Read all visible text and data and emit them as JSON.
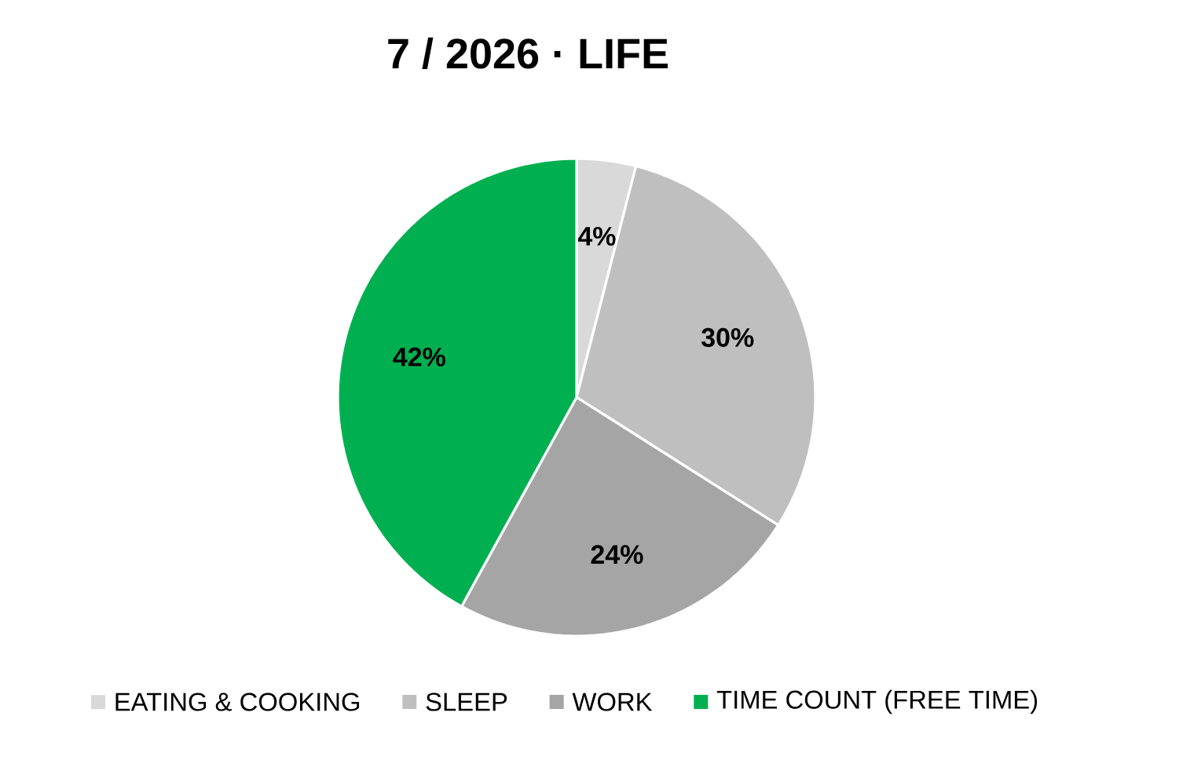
{
  "chart_data": {
    "type": "pie",
    "title": "7  / 2026 · LIFE",
    "categories": [
      "EATING & COOKING",
      "SLEEP",
      "WORK",
      "TIME COUNT (FREE TIME)"
    ],
    "values": [
      4,
      30,
      24,
      42
    ],
    "value_labels": [
      "4%",
      "30%",
      "24%",
      "42%"
    ],
    "colors": [
      "#d9d9d9",
      "#bfbfbf",
      "#a5a5a5",
      "#00b050"
    ],
    "legend": "bottom"
  }
}
